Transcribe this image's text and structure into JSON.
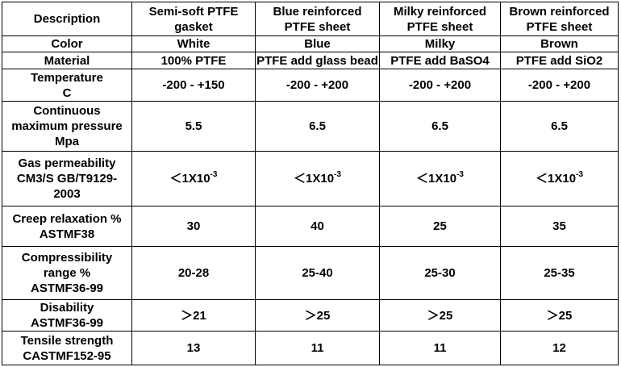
{
  "table": {
    "header": [
      "Description",
      "Semi-soft PTFE\ngasket",
      "Blue reinforced\nPTFE sheet",
      "Milky reinforced\nPTFE sheet",
      "Brown reinforced\nPTFE sheet"
    ],
    "rows": [
      [
        "Color",
        "White",
        "Blue",
        "Milky",
        "Brown"
      ],
      [
        "Material",
        "100% PTFE",
        "PTFE add glass bead",
        "PTFE add BaSO4",
        "PTFE add SiO2"
      ],
      [
        "Temperature\nC",
        "-200 - +150",
        "-200 - +200",
        "-200 - +200",
        "-200 - +200"
      ],
      [
        "Continuous\nmaximum pressure\nMpa",
        "5.5",
        "6.5",
        "6.5",
        "6.5"
      ],
      [
        "Gas permeability\nCM3/S GB/T9129-\n2003",
        {
          "text": "＜1X10",
          "sup": "-3"
        },
        {
          "text": "＜1X10",
          "sup": "-3"
        },
        {
          "text": "＜1X10",
          "sup": "-3"
        },
        {
          "text": "＜1X10",
          "sup": "-3"
        }
      ],
      [
        "Creep relaxation %\nASTMF38",
        "30",
        "40",
        "25",
        "35"
      ],
      [
        "Compressibility\nrange %\nASTMF36-99",
        "20-28",
        "25-40",
        "25-30",
        "25-35"
      ],
      [
        "Disability\nASTMF36-99",
        "＞21",
        "＞25",
        "＞25",
        "＞25"
      ],
      [
        "Tensile strength\nCASTMF152-95",
        "13",
        "11",
        "11",
        "12"
      ]
    ]
  }
}
